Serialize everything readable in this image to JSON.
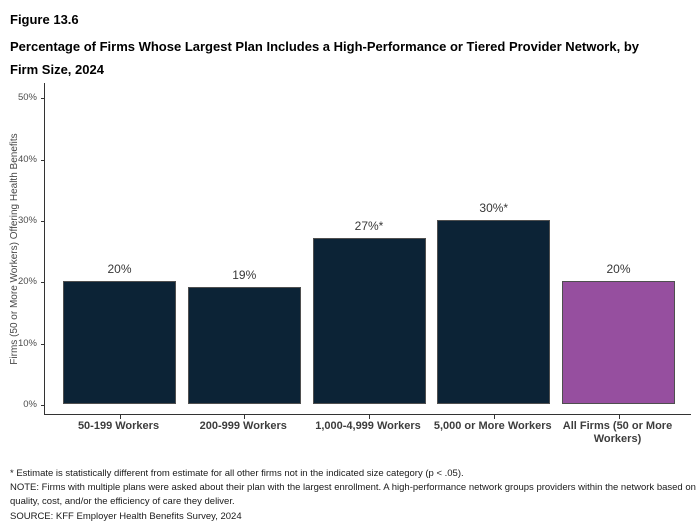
{
  "figure": {
    "label": "Figure 13.6",
    "title": "Percentage of Firms Whose Largest Plan Includes a High-Performance or Tiered Provider Network, by Firm Size, 2024"
  },
  "chart_data": {
    "type": "bar",
    "categories": [
      "50-199 Workers",
      "200-999 Workers",
      "1,000-4,999 Workers",
      "5,000 or More Workers",
      "All Firms (50 or More Workers)"
    ],
    "values": [
      20,
      19,
      27,
      30,
      20
    ],
    "value_labels": [
      "20%",
      "19%",
      "27%*",
      "30%*",
      "20%"
    ],
    "title": "Percentage of Firms Whose Largest Plan Includes a High-Performance or Tiered Provider Network, by Firm Size, 2024",
    "xlabel": "",
    "ylabel": "Firms (50 or More Workers) Offering Health Benefits",
    "yticks": [
      "0%",
      "10%",
      "20%",
      "30%",
      "40%",
      "50%"
    ],
    "ylim": [
      0,
      52
    ],
    "grid": false,
    "legend": false,
    "bar_colors": [
      "#0C2336",
      "#0C2336",
      "#0C2336",
      "#0C2336",
      "#964F9F"
    ],
    "bar_border_color": "#4f4f4f",
    "axis_color": "#333333"
  },
  "footnotes": {
    "significance": "* Estimate is statistically different from estimate for all other firms not in the indicated size category (p < .05).",
    "note": "NOTE: Firms with multiple plans were asked about their plan with the largest enrollment.  A high-performance network groups providers within the network based on quality, cost, and/or the efficiency of care they deliver.",
    "source": "SOURCE: KFF Employer Health Benefits Survey, 2024"
  }
}
